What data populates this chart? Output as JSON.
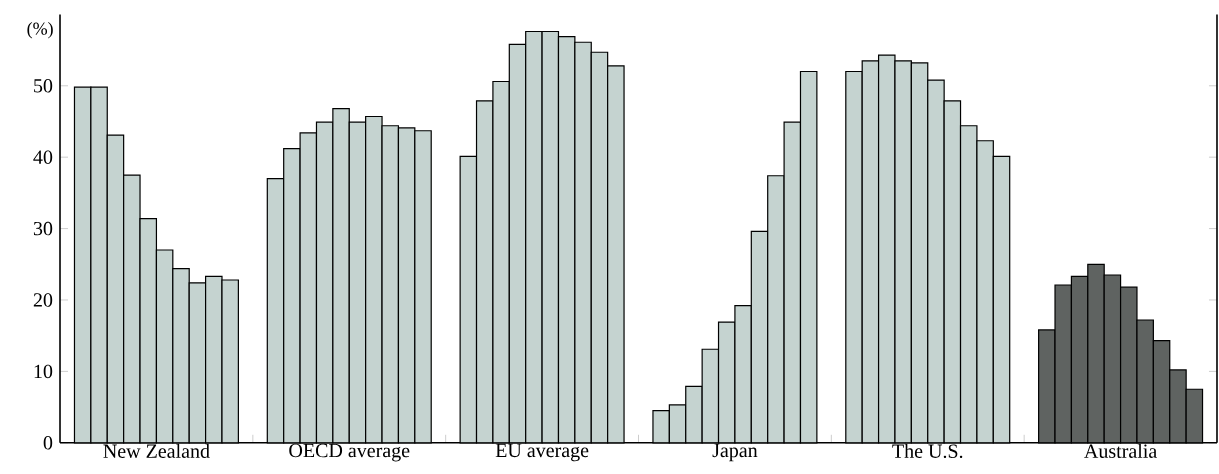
{
  "chart_data": {
    "type": "bar",
    "ylabel": "(%)",
    "categories": [
      "New Zealand",
      "OECD average",
      "EU average",
      "Japan",
      "The U.S.",
      "Australia"
    ],
    "series": [
      {
        "values": [
          49.8,
          37.0,
          40.1,
          4.5,
          52.0,
          15.8
        ],
        "colors": [
          "#c5d3d0",
          "#c5d3d0",
          "#c5d3d0",
          "#c5d3d0",
          "#c5d3d0",
          "#5f6361"
        ]
      },
      {
        "values": [
          49.8,
          41.2,
          47.9,
          5.3,
          53.5,
          22.1
        ],
        "colors": [
          "#c5d3d0",
          "#c5d3d0",
          "#c5d3d0",
          "#c5d3d0",
          "#c5d3d0",
          "#5f6361"
        ]
      },
      {
        "values": [
          43.1,
          43.4,
          50.6,
          7.9,
          54.3,
          23.3
        ],
        "colors": [
          "#c5d3d0",
          "#c5d3d0",
          "#c5d3d0",
          "#c5d3d0",
          "#c5d3d0",
          "#5f6361"
        ]
      },
      {
        "values": [
          37.5,
          44.9,
          55.8,
          13.1,
          53.5,
          25.0
        ],
        "colors": [
          "#c5d3d0",
          "#c5d3d0",
          "#c5d3d0",
          "#c5d3d0",
          "#c5d3d0",
          "#5f6361"
        ]
      },
      {
        "values": [
          31.4,
          46.8,
          57.6,
          16.9,
          53.2,
          23.5
        ],
        "colors": [
          "#c5d3d0",
          "#c5d3d0",
          "#c5d3d0",
          "#c5d3d0",
          "#c5d3d0",
          "#5f6361"
        ]
      },
      {
        "values": [
          27.0,
          44.9,
          57.6,
          19.2,
          50.8,
          21.8
        ],
        "colors": [
          "#c5d3d0",
          "#c5d3d0",
          "#c5d3d0",
          "#c5d3d0",
          "#c5d3d0",
          "#5f6361"
        ]
      },
      {
        "values": [
          24.4,
          45.7,
          56.9,
          29.6,
          47.9,
          17.2
        ],
        "colors": [
          "#c5d3d0",
          "#c5d3d0",
          "#c5d3d0",
          "#c5d3d0",
          "#c5d3d0",
          "#5f6361"
        ]
      },
      {
        "values": [
          22.4,
          44.4,
          56.1,
          37.4,
          44.4,
          14.3
        ],
        "colors": [
          "#c5d3d0",
          "#c5d3d0",
          "#c5d3d0",
          "#c5d3d0",
          "#c5d3d0",
          "#5f6361"
        ]
      },
      {
        "values": [
          23.3,
          44.1,
          54.7,
          44.9,
          42.3,
          10.2
        ],
        "colors": [
          "#c5d3d0",
          "#c5d3d0",
          "#c5d3d0",
          "#c5d3d0",
          "#c5d3d0",
          "#5f6361"
        ]
      },
      {
        "values": [
          22.8,
          43.7,
          52.8,
          52.0,
          40.1,
          7.5
        ],
        "colors": [
          "#c5d3d0",
          "#c5d3d0",
          "#c5d3d0",
          "#c5d3d0",
          "#c5d3d0",
          "#5f6361"
        ]
      }
    ],
    "ylim": [
      0,
      60
    ],
    "yticks": [
      0,
      10,
      20,
      30,
      40,
      50
    ]
  }
}
